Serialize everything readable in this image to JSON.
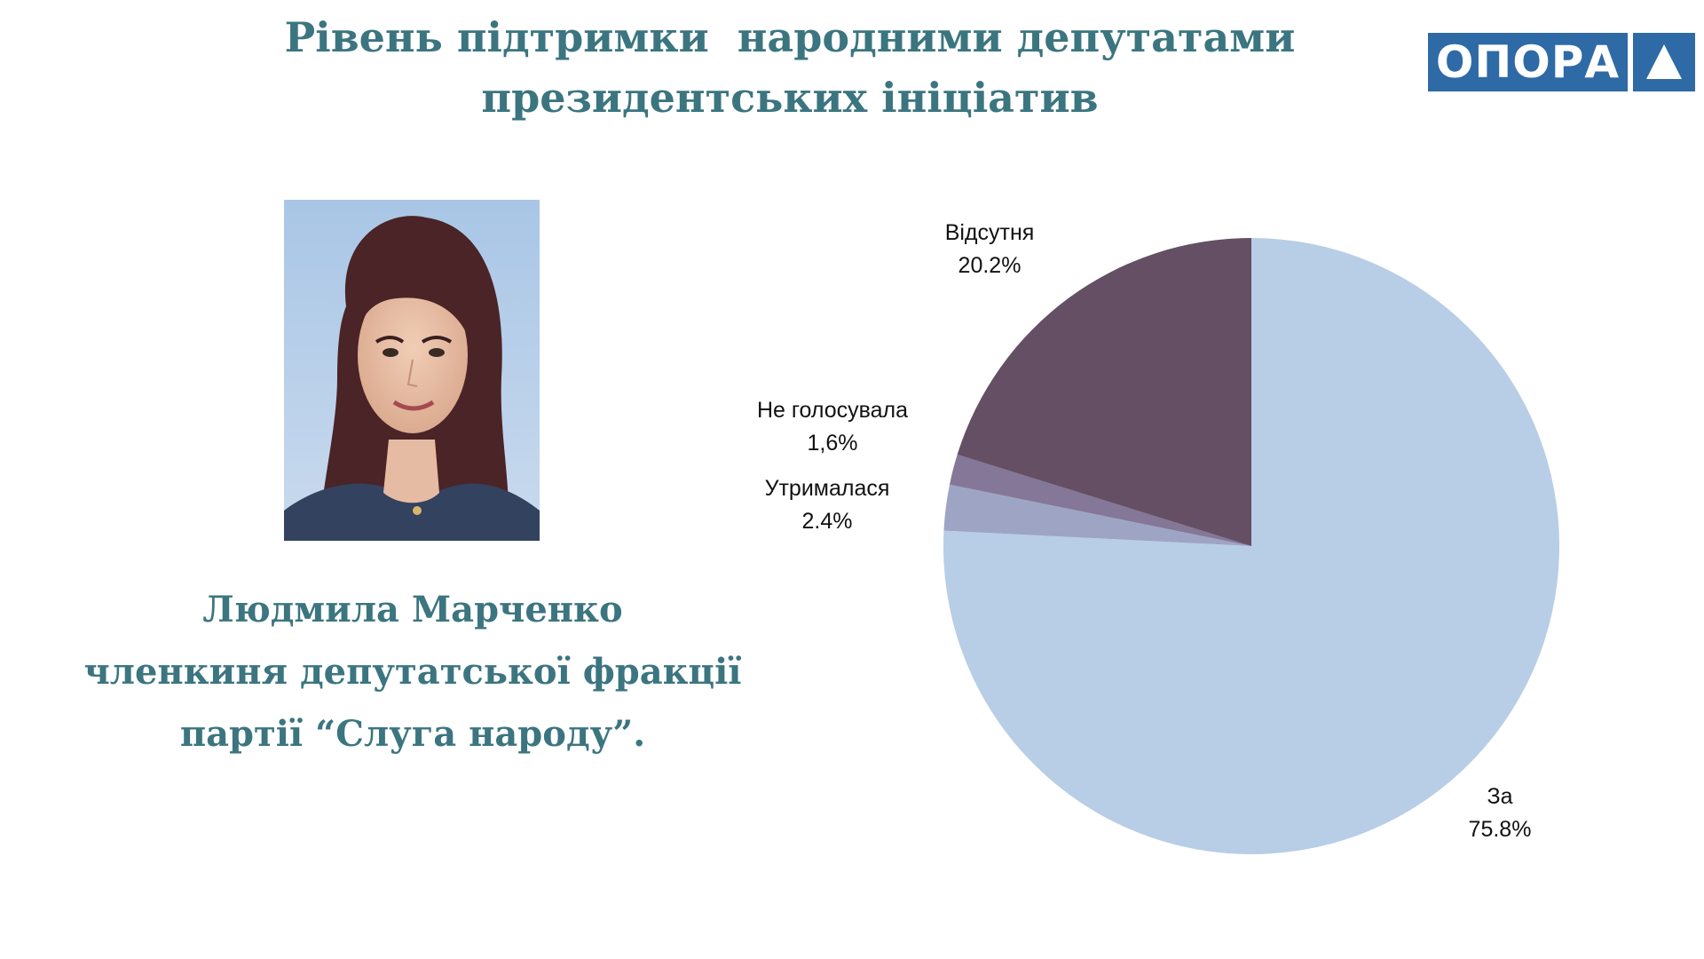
{
  "header": {
    "title_lines": [
      "Рівень підтримки  народними депутатами",
      "президентських ініціатив"
    ]
  },
  "logo": {
    "text": "ОПОРА",
    "brand_color": "#2e6aa6"
  },
  "caption": {
    "lines": [
      "Людмила Марченко",
      "членкиня депутатської фракції",
      "партії “Слуга народу”."
    ]
  },
  "colors": {
    "title": "#3b7580"
  },
  "chart_data": {
    "type": "pie",
    "title": "",
    "slices": [
      {
        "label": "За",
        "value": 75.8,
        "display": "75.8%",
        "color": "#b8cde6"
      },
      {
        "label": "Утрималася",
        "value": 2.4,
        "display": "2.4%",
        "color": "#9ea5c4"
      },
      {
        "label": "Не голосувала",
        "value": 1.6,
        "display": "1,6%",
        "color": "#847797"
      },
      {
        "label": "Відсутня",
        "value": 20.2,
        "display": "20.2%",
        "color": "#644f64"
      }
    ],
    "start_angle_deg": 0,
    "direction": "clockwise",
    "legend": "none"
  }
}
